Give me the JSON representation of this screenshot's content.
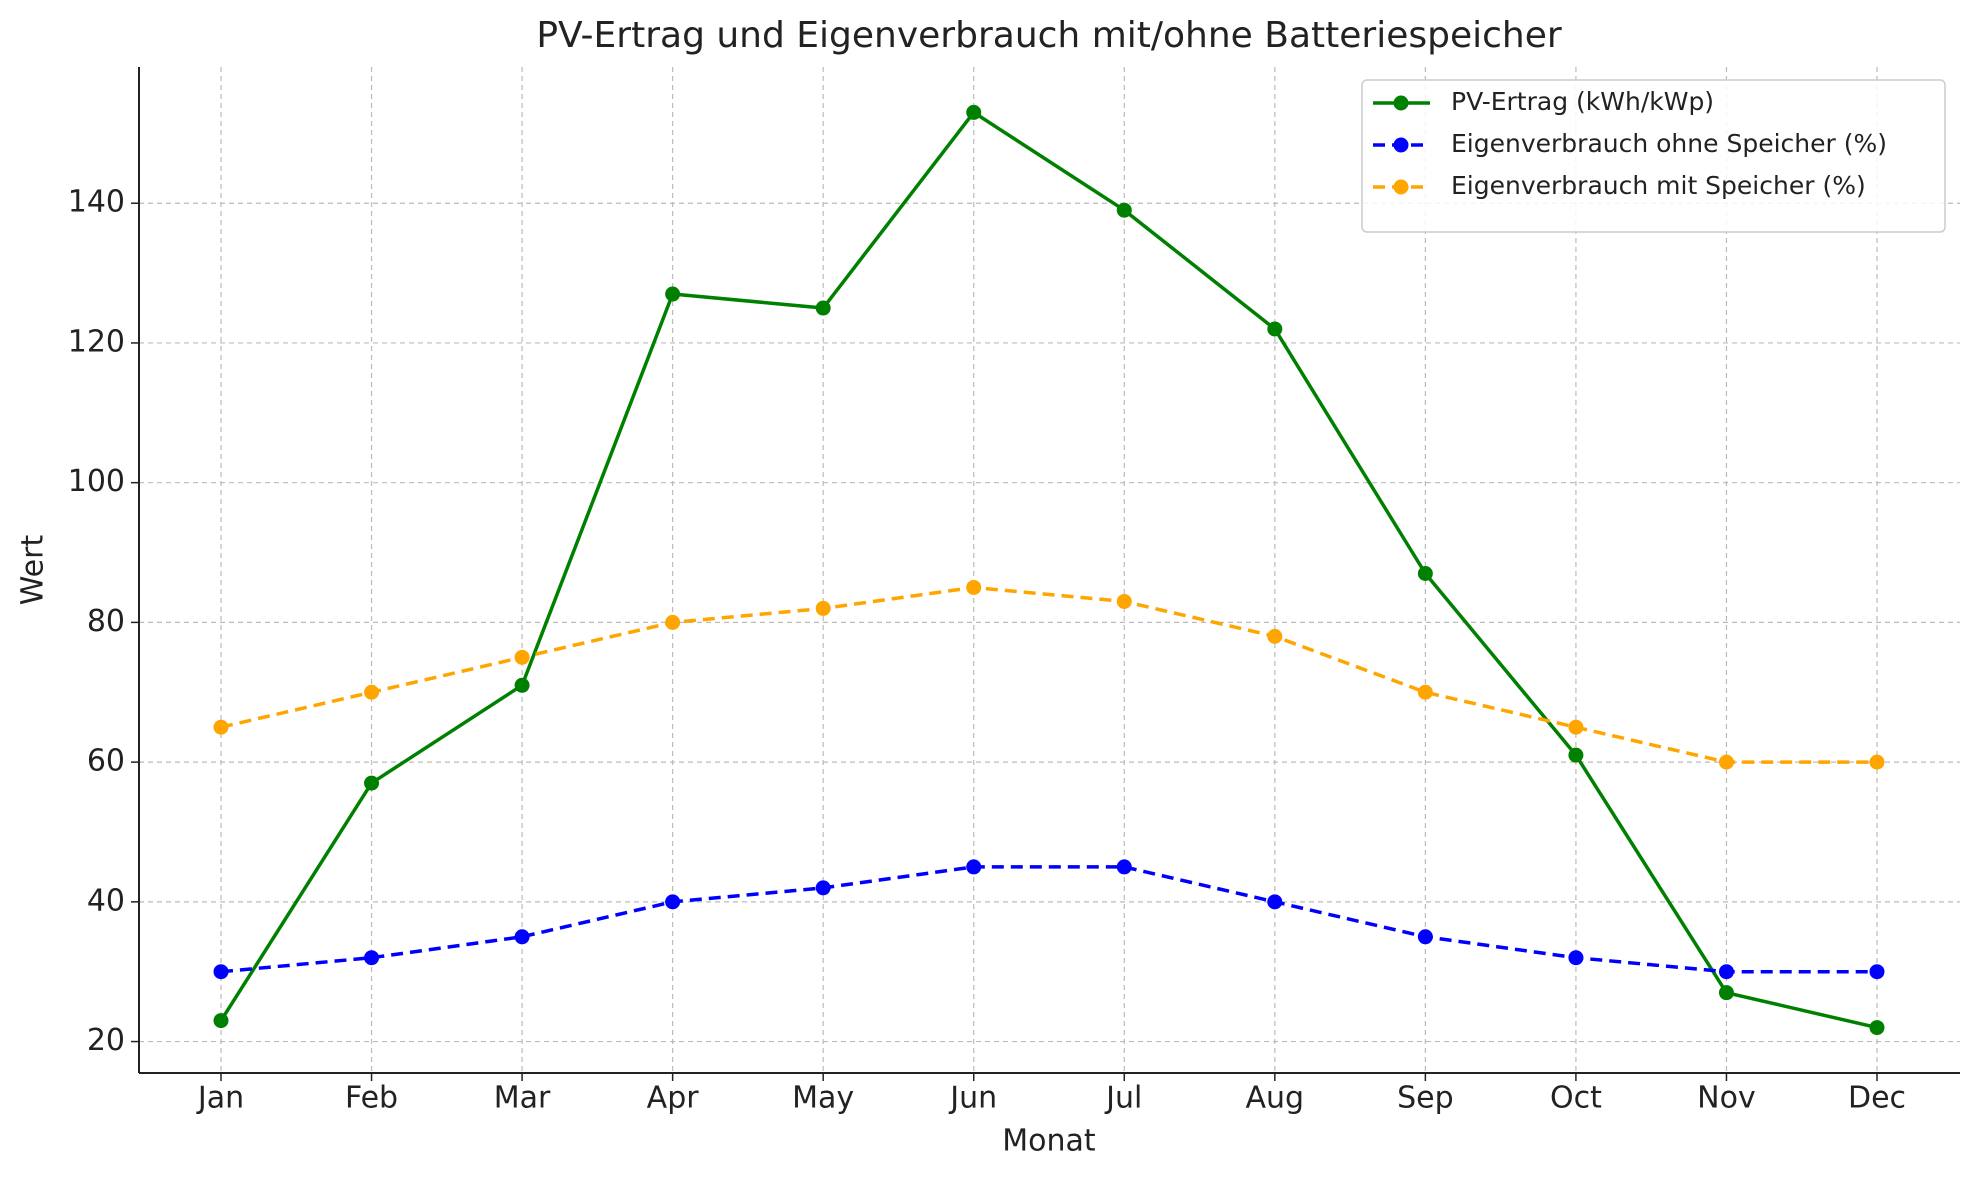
{
  "chart_data": {
    "type": "line",
    "title": "PV-Ertrag und Eigenverbrauch mit/ohne Batteriespeicher",
    "x_label": "Monat",
    "y_label": "Wert",
    "categories": [
      "Jan",
      "Feb",
      "Mar",
      "Apr",
      "May",
      "Jun",
      "Jul",
      "Aug",
      "Sep",
      "Oct",
      "Nov",
      "Dec"
    ],
    "series": [
      {
        "name": "PV-Ertrag (kWh/kWp)",
        "color": "#008000",
        "linestyle": "solid",
        "values": [
          23,
          57,
          71,
          127,
          125,
          153,
          139,
          122,
          87,
          61,
          27,
          22
        ]
      },
      {
        "name": "Eigenverbrauch ohne Speicher (%)",
        "color": "#0000ff",
        "linestyle": "dashed",
        "values": [
          30,
          32,
          35,
          40,
          42,
          45,
          45,
          40,
          35,
          32,
          30,
          30
        ]
      },
      {
        "name": "Eigenverbrauch mit Speicher (%)",
        "color": "#ffa500",
        "linestyle": "dashed",
        "values": [
          65,
          70,
          75,
          80,
          82,
          85,
          83,
          78,
          70,
          65,
          60,
          60
        ]
      }
    ],
    "ylim": [
      15.5,
      159.5
    ],
    "yticks": [
      20,
      40,
      60,
      80,
      100,
      120,
      140
    ],
    "grid": true,
    "legend": "upper right"
  }
}
